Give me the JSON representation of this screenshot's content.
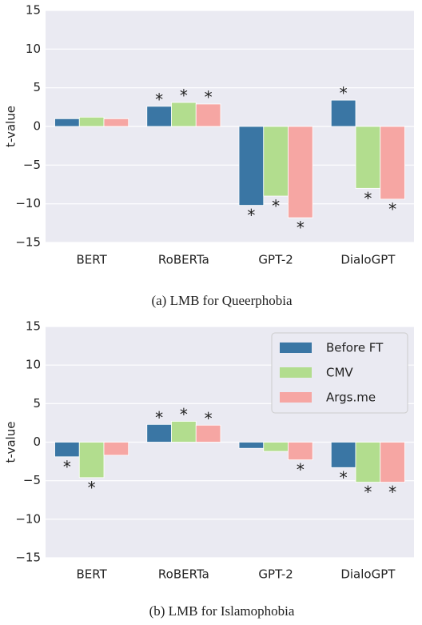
{
  "chart_data": [
    {
      "type": "bar",
      "caption": "(a) LMB for Queerphobia",
      "ylabel": "t-value",
      "categories": [
        "BERT",
        "RoBERTa",
        "GPT-2",
        "DialoGPT"
      ],
      "significance_marker": "*",
      "series": [
        {
          "name": "Before FT",
          "color": "#3a76a4",
          "values": [
            1.0,
            2.6,
            -10.2,
            3.4
          ],
          "significant": [
            false,
            true,
            true,
            true
          ]
        },
        {
          "name": "CMV",
          "color": "#b2dd8e",
          "values": [
            1.2,
            3.1,
            -9.0,
            -8.0
          ],
          "significant": [
            false,
            true,
            true,
            true
          ]
        },
        {
          "name": "Args.me",
          "color": "#f6a6a3",
          "values": [
            1.0,
            2.9,
            -11.8,
            -9.4
          ],
          "significant": [
            false,
            true,
            true,
            true
          ]
        }
      ],
      "ylim": [
        -15,
        15
      ],
      "yticks": [
        {
          "value": -15,
          "label": "−15"
        },
        {
          "value": -10,
          "label": "−10"
        },
        {
          "value": -5,
          "label": "−5"
        },
        0,
        5,
        10,
        15
      ],
      "grid": true
    },
    {
      "type": "bar",
      "caption": "(b) LMB for Islamophobia",
      "ylabel": "t-value",
      "categories": [
        "BERT",
        "RoBERTa",
        "GPT-2",
        "DialoGPT"
      ],
      "significance_marker": "*",
      "series": [
        {
          "name": "Before FT",
          "color": "#3a76a4",
          "values": [
            -1.9,
            2.3,
            -0.8,
            -3.3
          ],
          "significant": [
            true,
            true,
            false,
            true
          ]
        },
        {
          "name": "CMV",
          "color": "#b2dd8e",
          "values": [
            -4.6,
            2.7,
            -1.2,
            -5.2
          ],
          "significant": [
            true,
            true,
            false,
            true
          ]
        },
        {
          "name": "Args.me",
          "color": "#f6a6a3",
          "values": [
            -1.7,
            2.2,
            -2.3,
            -5.2
          ],
          "significant": [
            false,
            true,
            true,
            true
          ]
        }
      ],
      "ylim": [
        -15,
        15
      ],
      "yticks": [
        {
          "value": -15,
          "label": "−15"
        },
        {
          "value": -10,
          "label": "−10"
        },
        {
          "value": -5,
          "label": "−5"
        },
        0,
        5,
        10,
        15
      ],
      "grid": true,
      "legend": "upper right"
    }
  ]
}
